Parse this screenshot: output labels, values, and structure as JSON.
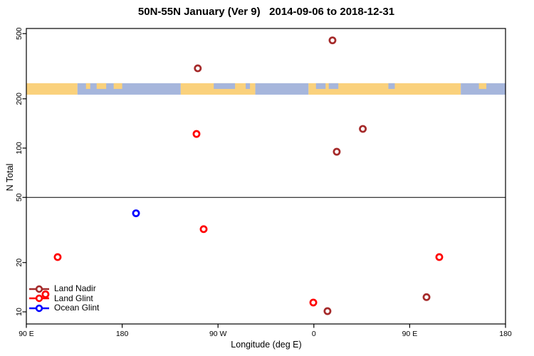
{
  "title": "50N-55N January (Ver 9)   2014-09-06 to 2018-12-31",
  "chart_data": {
    "type": "scatter",
    "title": "50N-55N January (Ver 9)   2014-09-06 to 2018-12-31",
    "xlabel": "Longitude (deg E)",
    "ylabel": "N Total",
    "x_scale": "linear",
    "y_scale": "log",
    "xlim": [
      90,
      540
    ],
    "ylim": [
      8.5,
      535
    ],
    "x_ticks": [
      {
        "lon": 90,
        "label": "90 E"
      },
      {
        "lon": 180,
        "label": "180"
      },
      {
        "lon": 270,
        "label": "90 W"
      },
      {
        "lon": 360,
        "label": "0"
      },
      {
        "lon": 450,
        "label": "90 E"
      },
      {
        "lon": 540,
        "label": "180"
      }
    ],
    "y_ticks": [
      {
        "value": 10,
        "label": "10"
      },
      {
        "value": 20,
        "label": "20"
      },
      {
        "value": 50,
        "label": "50"
      },
      {
        "value": 100,
        "label": "100"
      },
      {
        "value": 200,
        "label": "200"
      },
      {
        "value": 500,
        "label": "500"
      }
    ],
    "reference_line_y": 50,
    "grid": false,
    "legend_position": "bottom-left",
    "series": [
      {
        "name": "Land Nadir",
        "color": "#A52A2A",
        "points": [
          {
            "lon": 251.0,
            "n": 307
          },
          {
            "lon": 377.5,
            "n": 455
          },
          {
            "lon": 381.5,
            "n": 95
          },
          {
            "lon": 406.0,
            "n": 131
          },
          {
            "lon": 372.8,
            "n": 10.1
          },
          {
            "lon": 465.8,
            "n": 12.3
          }
        ]
      },
      {
        "name": "Land Glint",
        "color": "#FF0000",
        "points": [
          {
            "lon": 108.0,
            "n": 12.8
          },
          {
            "lon": 119.4,
            "n": 21.6
          },
          {
            "lon": 249.8,
            "n": 122
          },
          {
            "lon": 256.5,
            "n": 32
          },
          {
            "lon": 359.5,
            "n": 11.4
          },
          {
            "lon": 477.8,
            "n": 21.6
          }
        ]
      },
      {
        "name": "Ocean Glint",
        "color": "#0000FF",
        "points": [
          {
            "lon": 193.0,
            "n": 40
          }
        ]
      }
    ],
    "map_strip": {
      "n_top": 249,
      "n_bottom": 212,
      "land_color": "#FAD17C",
      "ocean_color": "#A6B6DC",
      "segments": [
        {
          "from": 90,
          "to": 138,
          "surface": "land"
        },
        {
          "from": 138,
          "to": 235,
          "surface": "ocean"
        },
        {
          "from": 235,
          "to": 305,
          "surface": "land"
        },
        {
          "from": 305,
          "to": 355,
          "surface": "ocean"
        },
        {
          "from": 355,
          "to": 498,
          "surface": "land"
        },
        {
          "from": 498,
          "to": 540,
          "surface": "ocean"
        }
      ],
      "top_patches": [
        {
          "from": 146,
          "to": 150,
          "surface": "land"
        },
        {
          "from": 156,
          "to": 165,
          "surface": "land"
        },
        {
          "from": 172,
          "to": 180,
          "surface": "land"
        },
        {
          "from": 266,
          "to": 286,
          "surface": "ocean"
        },
        {
          "from": 296,
          "to": 300,
          "surface": "ocean"
        },
        {
          "from": 362,
          "to": 371,
          "surface": "ocean"
        },
        {
          "from": 374,
          "to": 383,
          "surface": "ocean"
        },
        {
          "from": 430,
          "to": 436,
          "surface": "ocean"
        },
        {
          "from": 515,
          "to": 522,
          "surface": "land"
        }
      ]
    }
  },
  "legend": {
    "items": [
      {
        "label": "Land Nadir",
        "color": "#A52A2A"
      },
      {
        "label": "Land Glint",
        "color": "#FF0000"
      },
      {
        "label": "Ocean Glint",
        "color": "#0000FF"
      }
    ]
  }
}
